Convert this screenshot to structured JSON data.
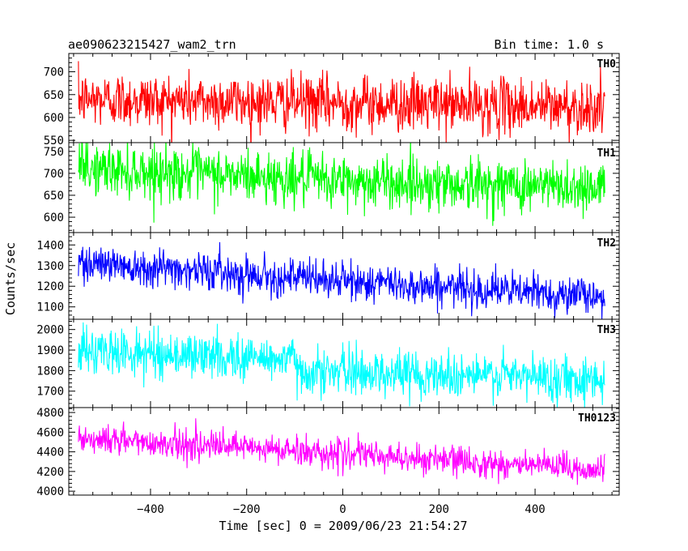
{
  "header": {
    "title": "ae090623215427_wam2_trn",
    "bin_time": "Bin time: 1.0 s"
  },
  "axes": {
    "xlabel": "Time [sec] 0 = 2009/06/23 21:54:27",
    "ylabel": "Counts/sec"
  },
  "chart_data": {
    "type": "line",
    "title": "ae090623215427_wam2_trn",
    "subtitle": "Bin time: 1.0 s",
    "xlabel": "Time [sec] 0 = 2009/06/23 21:54:27",
    "ylabel": "Counts/sec",
    "xlim": [
      -570,
      575
    ],
    "x_range": [
      -550,
      545
    ],
    "x_step": 1.0,
    "xticks": [
      -400,
      -200,
      0,
      200,
      400
    ],
    "xtick_labels": [
      "−400",
      "−200",
      "0",
      "200",
      "400"
    ],
    "grid": false,
    "panels": [
      {
        "name": "TH0",
        "color": "#ff0000",
        "ylim": [
          545,
          740
        ],
        "yticks": [
          550,
          600,
          650,
          700
        ],
        "trend": [
          [
            -550,
            640
          ],
          [
            0,
            632
          ],
          [
            545,
            622
          ]
        ],
        "noise": 30
      },
      {
        "name": "TH1",
        "color": "#00ff00",
        "ylim": [
          565,
          770
        ],
        "yticks": [
          600,
          650,
          700,
          750
        ],
        "trend": [
          [
            -550,
            712
          ],
          [
            0,
            682
          ],
          [
            545,
            668
          ]
        ],
        "noise": 30
      },
      {
        "name": "TH2",
        "color": "#0000ff",
        "ylim": [
          1040,
          1460
        ],
        "yticks": [
          1100,
          1200,
          1300,
          1400
        ],
        "trend": [
          [
            -550,
            1320
          ],
          [
            0,
            1225
          ],
          [
            545,
            1150
          ]
        ],
        "noise": 45
      },
      {
        "name": "TH3",
        "color": "#00ffff",
        "ylim": [
          1620,
          2050
        ],
        "yticks": [
          1700,
          1800,
          1900,
          2000
        ],
        "trend": [
          [
            -550,
            1895
          ],
          [
            -100,
            1855
          ],
          [
            -95,
            1800
          ],
          [
            545,
            1760
          ]
        ],
        "noise": 55
      },
      {
        "name": "TH0123",
        "color": "#ff00ff",
        "ylim": [
          3960,
          4850
        ],
        "yticks": [
          4000,
          4200,
          4400,
          4600,
          4800
        ],
        "trend": [
          [
            -550,
            4540
          ],
          [
            0,
            4380
          ],
          [
            545,
            4210
          ]
        ],
        "noise": 75
      }
    ]
  }
}
